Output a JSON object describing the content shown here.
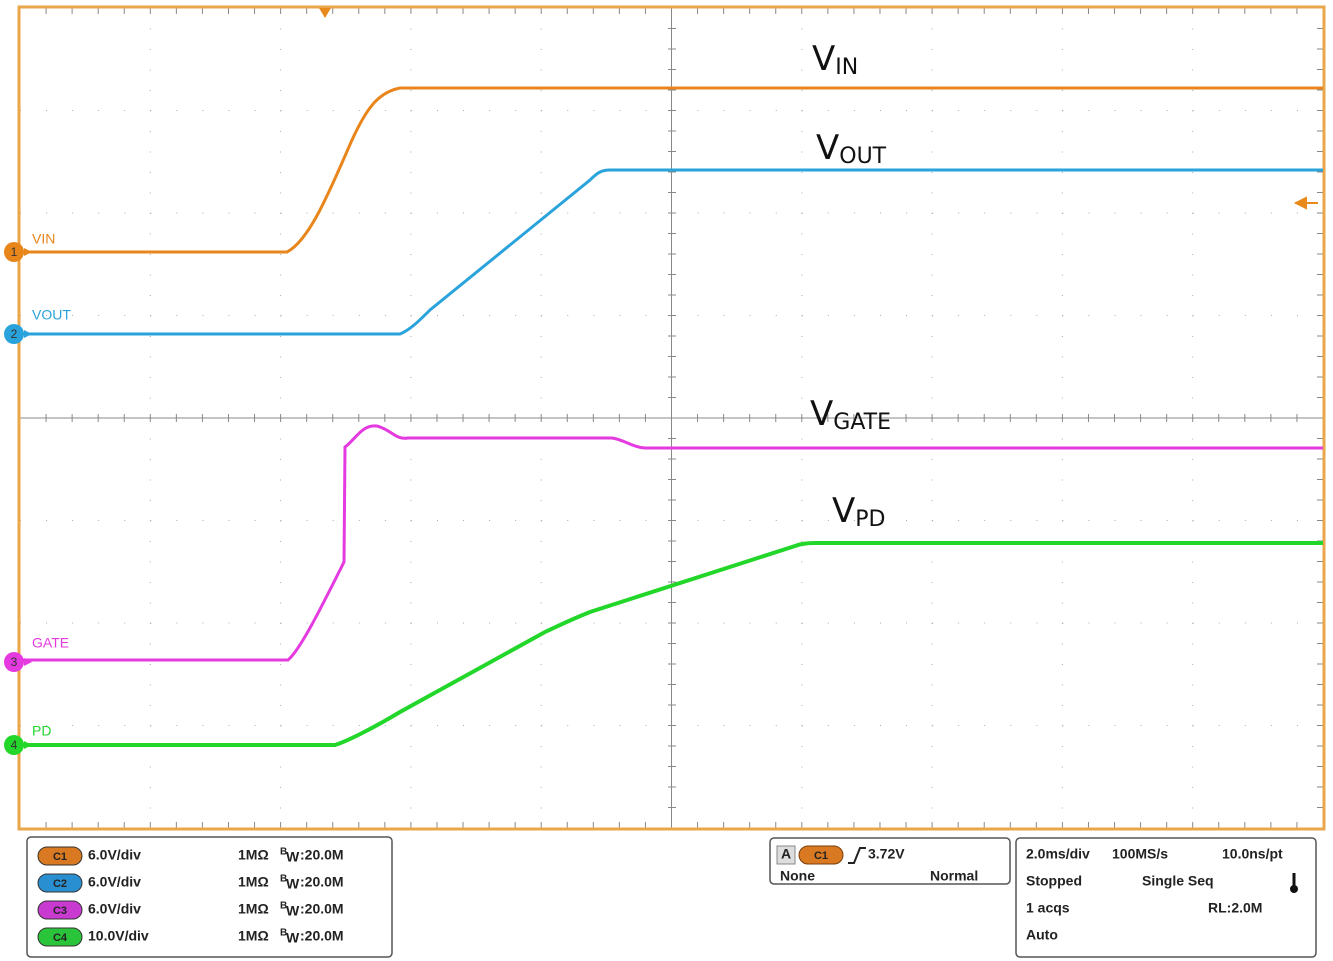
{
  "trace_labels": [
    {
      "main": "V",
      "sub": "IN"
    },
    {
      "main": "V",
      "sub": "OUT"
    },
    {
      "main": "V",
      "sub": "GATE"
    },
    {
      "main": "V",
      "sub": "PD"
    }
  ],
  "channel_markers": [
    {
      "number": "1",
      "name": "VIN"
    },
    {
      "number": "2",
      "name": "VOUT"
    },
    {
      "number": "3",
      "name": "GATE"
    },
    {
      "number": "4",
      "name": "PD"
    }
  ],
  "channels": [
    {
      "badge": "C1",
      "scale": "6.0V/div",
      "impedance": "1MΩ",
      "bw_b": "B",
      "bw_w": "W",
      "bw": ":20.0M"
    },
    {
      "badge": "C2",
      "scale": "6.0V/div",
      "impedance": "1MΩ",
      "bw_b": "B",
      "bw_w": "W",
      "bw": ":20.0M"
    },
    {
      "badge": "C3",
      "scale": "6.0V/div",
      "impedance": "1MΩ",
      "bw_b": "B",
      "bw_w": "W",
      "bw": ":20.0M"
    },
    {
      "badge": "C4",
      "scale": "10.0V/div",
      "impedance": "1MΩ",
      "bw_b": "B",
      "bw_w": "W",
      "bw": ":20.0M"
    }
  ],
  "trigger": {
    "mode_letter": "A",
    "source": "C1",
    "level": "3.72V",
    "coupling": "None",
    "mode": "Normal"
  },
  "acquisition": {
    "timebase": "2.0ms/div",
    "sample_rate": "100MS/s",
    "resolution": "10.0ns/pt",
    "state": "Stopped",
    "run_mode": "Single Seq",
    "acqs": "1 acqs",
    "record_length": "RL:2.0M",
    "trigger_type": "Auto"
  }
}
